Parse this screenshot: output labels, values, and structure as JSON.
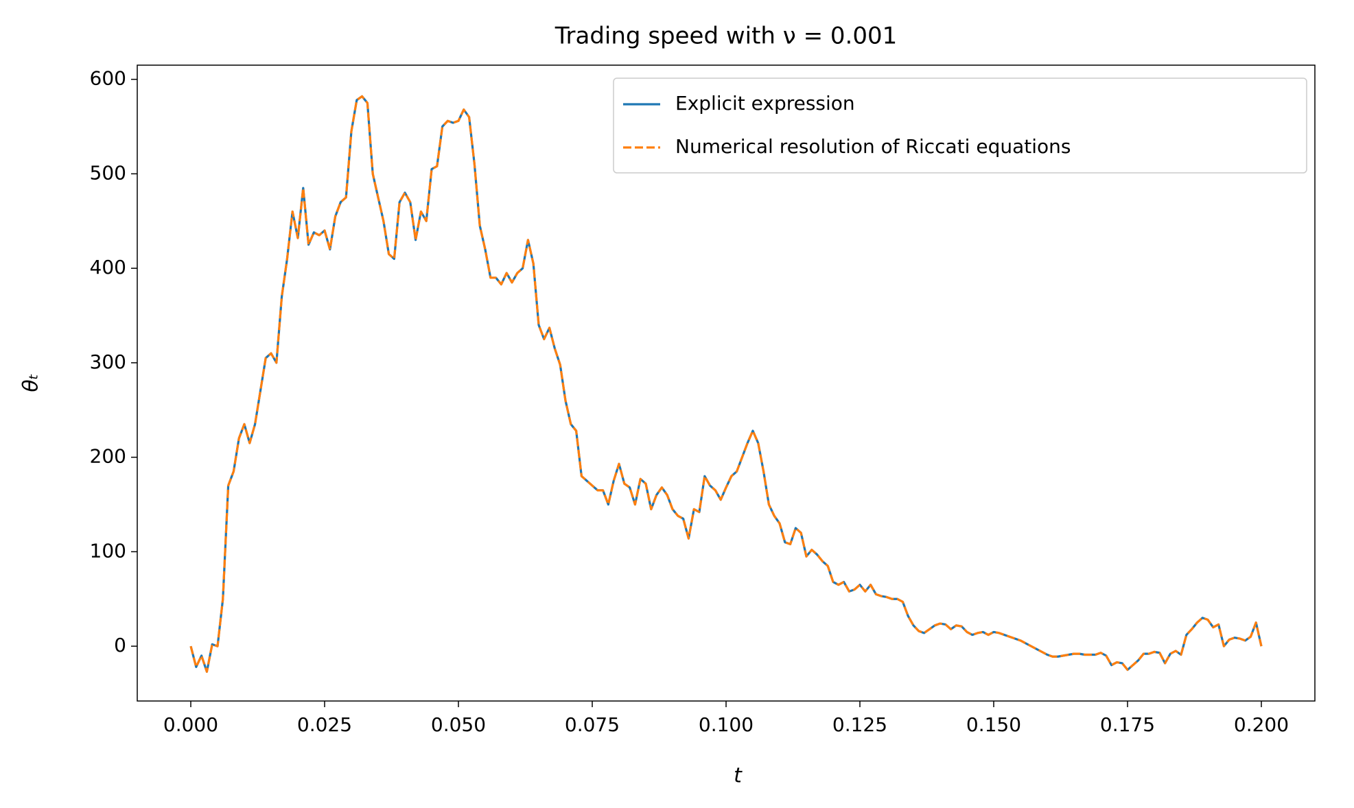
{
  "chart_data": {
    "type": "line",
    "title": "Trading speed with ν = 0.001",
    "xlabel": "t",
    "ylabel": "θₜ",
    "x": [
      0,
      0.001,
      0.002,
      0.003,
      0.004,
      0.005,
      0.006,
      0.007,
      0.008,
      0.009,
      0.01,
      0.011,
      0.012,
      0.013,
      0.014,
      0.015,
      0.016,
      0.017,
      0.018,
      0.019,
      0.02,
      0.021,
      0.022,
      0.023,
      0.024,
      0.025,
      0.026,
      0.027,
      0.028,
      0.029,
      0.03,
      0.031,
      0.032,
      0.033,
      0.034,
      0.035,
      0.036,
      0.037,
      0.038,
      0.039,
      0.04,
      0.041,
      0.042,
      0.043,
      0.044,
      0.045,
      0.046,
      0.047,
      0.048,
      0.049,
      0.05,
      0.051,
      0.052,
      0.053,
      0.054,
      0.055,
      0.056,
      0.057,
      0.058,
      0.059,
      0.06,
      0.061,
      0.062,
      0.063,
      0.064,
      0.065,
      0.066,
      0.067,
      0.068,
      0.069,
      0.07,
      0.071,
      0.072,
      0.073,
      0.074,
      0.075,
      0.076,
      0.077,
      0.078,
      0.079,
      0.08,
      0.081,
      0.082,
      0.083,
      0.084,
      0.085,
      0.086,
      0.087,
      0.088,
      0.089,
      0.09,
      0.091,
      0.092,
      0.093,
      0.094,
      0.095,
      0.096,
      0.097,
      0.098,
      0.099,
      0.1,
      0.101,
      0.102,
      0.103,
      0.104,
      0.105,
      0.106,
      0.107,
      0.108,
      0.109,
      0.11,
      0.111,
      0.112,
      0.113,
      0.114,
      0.115,
      0.116,
      0.117,
      0.118,
      0.119,
      0.12,
      0.121,
      0.122,
      0.123,
      0.124,
      0.125,
      0.126,
      0.127,
      0.128,
      0.129,
      0.13,
      0.131,
      0.132,
      0.133,
      0.134,
      0.135,
      0.136,
      0.137,
      0.138,
      0.139,
      0.14,
      0.141,
      0.142,
      0.143,
      0.144,
      0.145,
      0.146,
      0.147,
      0.148,
      0.149,
      0.15,
      0.151,
      0.152,
      0.153,
      0.154,
      0.155,
      0.156,
      0.157,
      0.158,
      0.159,
      0.16,
      0.161,
      0.162,
      0.163,
      0.164,
      0.165,
      0.166,
      0.167,
      0.168,
      0.169,
      0.17,
      0.171,
      0.172,
      0.173,
      0.174,
      0.175,
      0.176,
      0.177,
      0.178,
      0.179,
      0.18,
      0.181,
      0.182,
      0.183,
      0.184,
      0.185,
      0.186,
      0.187,
      0.188,
      0.189,
      0.19,
      0.191,
      0.192,
      0.193,
      0.194,
      0.195,
      0.196,
      0.197,
      0.198,
      0.199,
      0.2
    ],
    "series": [
      {
        "name": "Explicit expression",
        "color": "#1f77b4",
        "style": "solid",
        "values": [
          0,
          -22,
          -10,
          -27,
          2,
          0,
          50,
          170,
          185,
          220,
          235,
          215,
          235,
          270,
          305,
          310,
          300,
          370,
          410,
          460,
          432,
          485,
          425,
          438,
          435,
          440,
          420,
          455,
          470,
          475,
          545,
          578,
          582,
          575,
          500,
          475,
          450,
          415,
          410,
          470,
          480,
          470,
          430,
          460,
          450,
          505,
          508,
          550,
          556,
          554,
          556,
          568,
          560,
          510,
          445,
          420,
          390,
          390,
          383,
          395,
          385,
          395,
          400,
          430,
          405,
          340,
          325,
          337,
          315,
          298,
          260,
          235,
          228,
          180,
          175,
          170,
          165,
          165,
          150,
          175,
          193,
          172,
          168,
          150,
          177,
          172,
          145,
          160,
          168,
          160,
          145,
          138,
          135,
          114,
          145,
          142,
          180,
          170,
          165,
          155,
          168,
          180,
          185,
          200,
          215,
          228,
          215,
          185,
          150,
          138,
          130,
          110,
          108,
          125,
          120,
          95,
          102,
          97,
          90,
          85,
          68,
          65,
          68,
          58,
          60,
          65,
          58,
          65,
          55,
          53,
          52,
          50,
          50,
          47,
          32,
          22,
          16,
          14,
          18,
          22,
          24,
          23,
          18,
          22,
          21,
          15,
          12,
          14,
          15,
          12,
          15,
          14,
          12,
          10,
          8,
          6,
          3,
          0,
          -3,
          -6,
          -9,
          -11,
          -11,
          -10,
          -9,
          -8,
          -8,
          -9,
          -9,
          -9,
          -7,
          -10,
          -20,
          -17,
          -18,
          -25,
          -20,
          -15,
          -8,
          -8,
          -6,
          -7,
          -18,
          -8,
          -5,
          -9,
          12,
          18,
          25,
          30,
          28,
          20,
          23,
          0,
          7,
          9,
          8,
          6,
          10,
          25,
          0
        ]
      },
      {
        "name": "Numerical resolution of Riccati equations",
        "color": "#ff7f0e",
        "style": "dashed",
        "values": [
          0,
          -22,
          -10,
          -27,
          2,
          0,
          50,
          170,
          185,
          220,
          235,
          215,
          235,
          270,
          305,
          310,
          300,
          370,
          410,
          460,
          432,
          485,
          425,
          438,
          435,
          440,
          420,
          455,
          470,
          475,
          545,
          578,
          582,
          575,
          500,
          475,
          450,
          415,
          410,
          470,
          480,
          470,
          430,
          460,
          450,
          505,
          508,
          550,
          556,
          554,
          556,
          568,
          560,
          510,
          445,
          420,
          390,
          390,
          383,
          395,
          385,
          395,
          400,
          430,
          405,
          340,
          325,
          337,
          315,
          298,
          260,
          235,
          228,
          180,
          175,
          170,
          165,
          165,
          150,
          175,
          193,
          172,
          168,
          150,
          177,
          172,
          145,
          160,
          168,
          160,
          145,
          138,
          135,
          114,
          145,
          142,
          180,
          170,
          165,
          155,
          168,
          180,
          185,
          200,
          215,
          228,
          215,
          185,
          150,
          138,
          130,
          110,
          108,
          125,
          120,
          95,
          102,
          97,
          90,
          85,
          68,
          65,
          68,
          58,
          60,
          65,
          58,
          65,
          55,
          53,
          52,
          50,
          50,
          47,
          32,
          22,
          16,
          14,
          18,
          22,
          24,
          23,
          18,
          22,
          21,
          15,
          12,
          14,
          15,
          12,
          15,
          14,
          12,
          10,
          8,
          6,
          3,
          0,
          -3,
          -6,
          -9,
          -11,
          -11,
          -10,
          -9,
          -8,
          -8,
          -9,
          -9,
          -9,
          -7,
          -10,
          -20,
          -17,
          -18,
          -25,
          -20,
          -15,
          -8,
          -8,
          -6,
          -7,
          -18,
          -8,
          -5,
          -9,
          12,
          18,
          25,
          30,
          28,
          20,
          23,
          0,
          7,
          9,
          8,
          6,
          10,
          25,
          0
        ]
      }
    ],
    "xlim": [
      -0.01,
      0.21
    ],
    "ylim": [
      -58,
      615
    ],
    "xticks": [
      {
        "value": 0,
        "label": "0.000"
      },
      {
        "value": 0.025,
        "label": "0.025"
      },
      {
        "value": 0.05,
        "label": "0.050"
      },
      {
        "value": 0.075,
        "label": "0.075"
      },
      {
        "value": 0.1,
        "label": "0.100"
      },
      {
        "value": 0.125,
        "label": "0.125"
      },
      {
        "value": 0.15,
        "label": "0.150"
      },
      {
        "value": 0.175,
        "label": "0.175"
      },
      {
        "value": 0.2,
        "label": "0.200"
      }
    ],
    "yticks": [
      0,
      100,
      200,
      300,
      400,
      500,
      600
    ],
    "grid": false,
    "legend": "upper right"
  }
}
